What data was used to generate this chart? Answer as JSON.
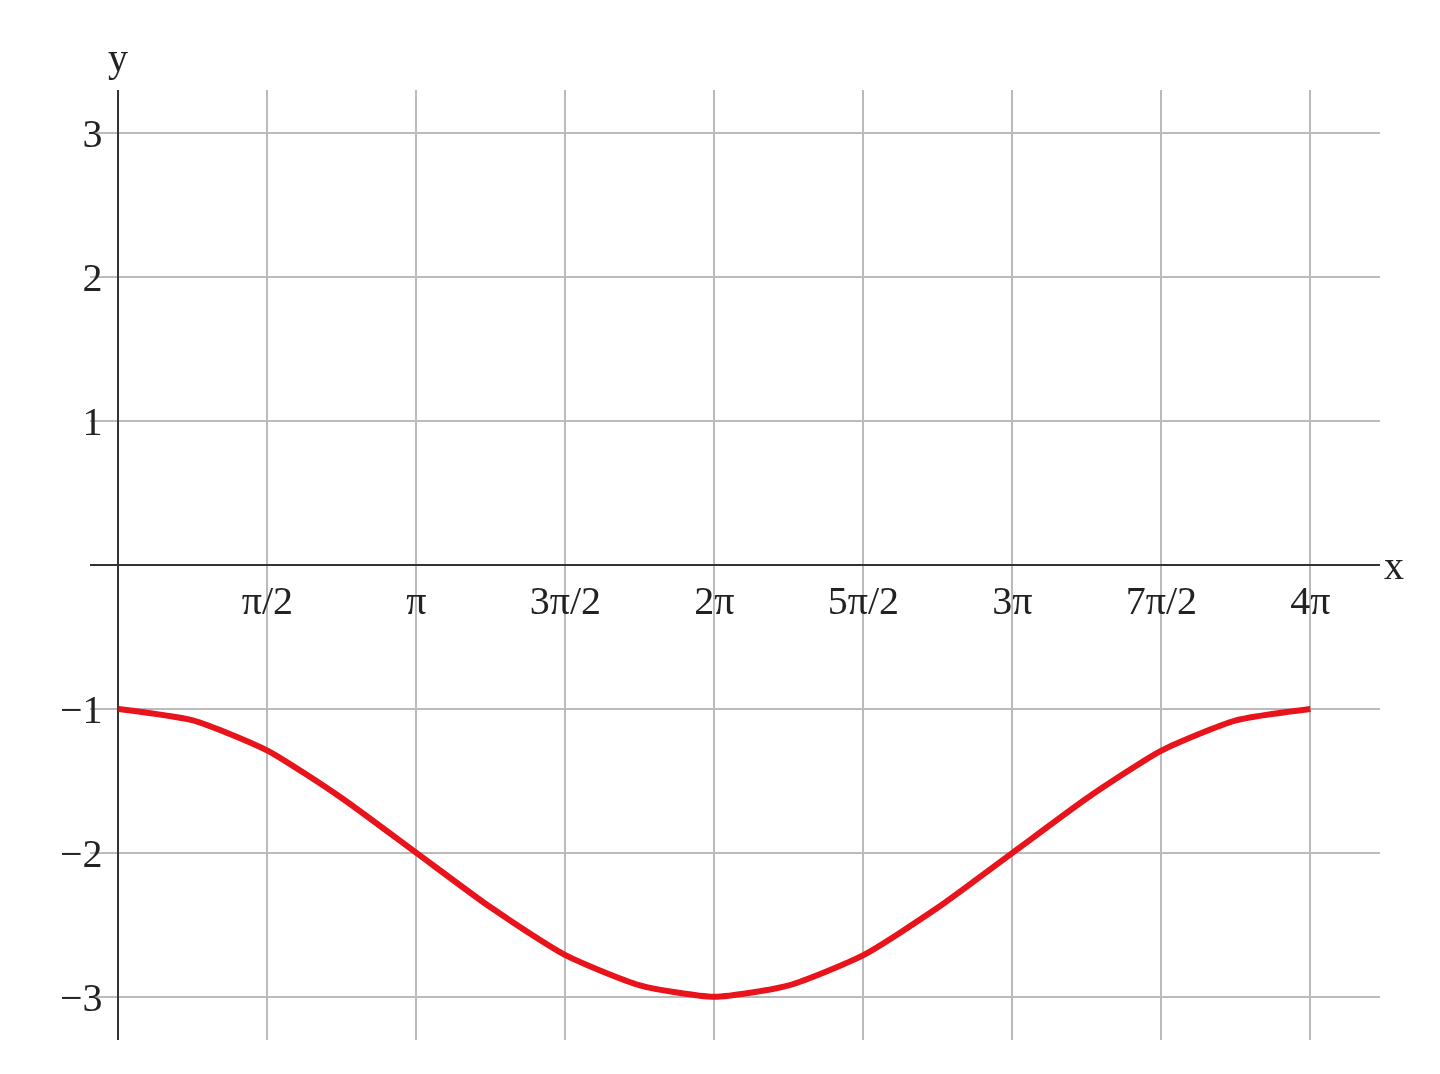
{
  "chart_data": {
    "type": "line",
    "xlabel": "x",
    "ylabel": "y",
    "x": [
      0,
      0.7854,
      1.5708,
      2.3562,
      3.1416,
      3.927,
      4.7124,
      5.4978,
      6.2832,
      7.0686,
      7.854,
      8.6394,
      9.4248,
      10.2102,
      10.9956,
      11.781,
      12.5664
    ],
    "series": [
      {
        "color": "#e8131b",
        "values": [
          -1,
          -1.08,
          -1.29,
          -1.62,
          -2,
          -2.38,
          -2.71,
          -2.92,
          -3,
          -2.92,
          -2.71,
          -2.38,
          -2,
          -1.62,
          -1.29,
          -1.08,
          -1
        ]
      }
    ],
    "xlim": [
      -0.3,
      13.3
    ],
    "ylim": [
      -3.3,
      3.3
    ],
    "xticks": [
      {
        "value": 1.5708,
        "label": "π/2"
      },
      {
        "value": 3.1416,
        "label": "π"
      },
      {
        "value": 4.7124,
        "label": "3π/2"
      },
      {
        "value": 6.2832,
        "label": "2π"
      },
      {
        "value": 7.854,
        "label": "5π/2"
      },
      {
        "value": 9.4248,
        "label": "3π"
      },
      {
        "value": 10.9956,
        "label": "7π/2"
      },
      {
        "value": 12.5664,
        "label": "4π"
      }
    ],
    "yticks": [
      -3,
      -2,
      -1,
      1,
      2,
      3
    ],
    "grid": true,
    "marker": "none",
    "line_style": "solid"
  }
}
